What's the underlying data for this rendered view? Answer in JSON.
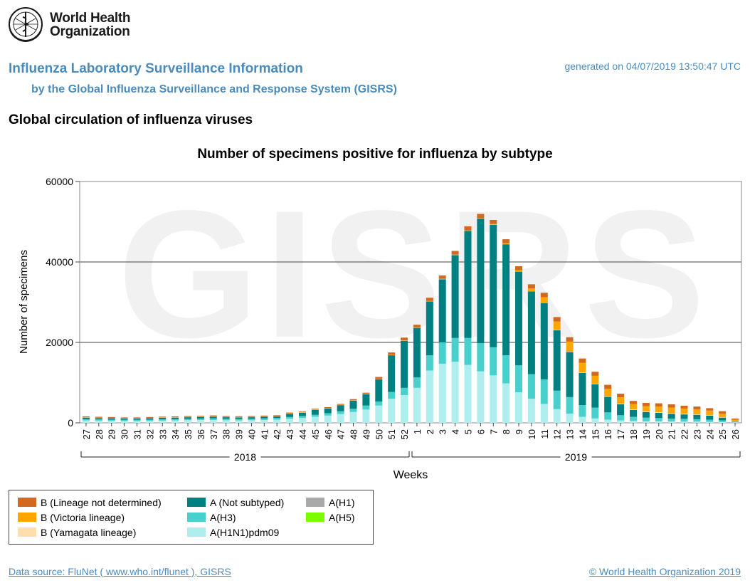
{
  "logo": {
    "line1": "World Health",
    "line2": "Organization"
  },
  "header": {
    "title": "Influenza Laboratory Surveillance Information",
    "subtitle": "by the Global Influenza Surveillance and Response System (GISRS)",
    "generated": "generated on 04/07/2019 13:50:47 UTC"
  },
  "section_title": "Global circulation of influenza viruses",
  "watermark": "GISRS",
  "colors": {
    "b_not_determined": "#d2691e",
    "b_victoria": "#ffa500",
    "b_yamagata": "#ffdead",
    "a_not_subtyped": "#008080",
    "a_h3": "#48d1cc",
    "a_h1n1pdm09": "#afeeee",
    "a_h1": "#a9a9a9",
    "a_h5": "#7cfc00"
  },
  "legend": {
    "items": [
      {
        "key": "b_not_determined",
        "label": "B (Lineage not determined)"
      },
      {
        "key": "b_victoria",
        "label": "B (Victoria lineage)"
      },
      {
        "key": "b_yamagata",
        "label": "B (Yamagata lineage)"
      },
      {
        "key": "a_not_subtyped",
        "label": "A (Not subtyped)"
      },
      {
        "key": "a_h3",
        "label": "A(H3)"
      },
      {
        "key": "a_h1n1pdm09",
        "label": "A(H1N1)pdm09"
      },
      {
        "key": "a_h1",
        "label": "A(H1)"
      },
      {
        "key": "a_h5",
        "label": "A(H5)"
      }
    ]
  },
  "footer": {
    "data_source": "Data source: FluNet ( www.who.int/flunet ), GISRS",
    "copyright": "© World Health Organization 2019"
  },
  "chart_data": {
    "type": "bar",
    "stacked": true,
    "title": "Number of specimens positive for influenza by subtype",
    "xlabel": "Weeks",
    "ylabel": "Number of specimens",
    "ylim": [
      0,
      60000
    ],
    "yticks": [
      0,
      20000,
      40000,
      60000
    ],
    "grid": true,
    "categories": [
      "27",
      "28",
      "29",
      "30",
      "31",
      "32",
      "33",
      "34",
      "35",
      "36",
      "37",
      "38",
      "39",
      "40",
      "41",
      "42",
      "43",
      "44",
      "45",
      "46",
      "47",
      "48",
      "49",
      "50",
      "51",
      "52",
      "1",
      "2",
      "3",
      "4",
      "5",
      "6",
      "7",
      "8",
      "9",
      "10",
      "11",
      "12",
      "13",
      "14",
      "15",
      "16",
      "17",
      "18",
      "19",
      "20",
      "21",
      "22",
      "23",
      "24",
      "25",
      "26"
    ],
    "year_groups": [
      {
        "label": "2018",
        "from": "27",
        "to": "52"
      },
      {
        "label": "2019",
        "from": "1",
        "to": "26"
      }
    ],
    "series": [
      {
        "key": "a_h1n1pdm09",
        "name": "A(H1N1)pdm09",
        "values": [
          600,
          550,
          500,
          450,
          450,
          500,
          550,
          600,
          650,
          700,
          700,
          650,
          600,
          650,
          700,
          800,
          1000,
          1200,
          1500,
          1800,
          2200,
          2700,
          3300,
          4300,
          6000,
          6900,
          8700,
          13000,
          14700,
          15200,
          14400,
          12800,
          11800,
          9800,
          7600,
          6000,
          4700,
          3400,
          2300,
          1500,
          1100,
          800,
          600,
          500,
          400,
          400,
          350,
          300,
          300,
          250,
          200,
          100
        ]
      },
      {
        "key": "a_h3",
        "name": "A(H3)",
        "values": [
          300,
          300,
          300,
          300,
          300,
          300,
          300,
          300,
          350,
          350,
          400,
          350,
          350,
          350,
          400,
          400,
          450,
          500,
          500,
          600,
          700,
          800,
          1000,
          1000,
          1700,
          1800,
          2600,
          3800,
          5300,
          5900,
          6700,
          7000,
          7000,
          7000,
          6700,
          6100,
          6100,
          4600,
          4100,
          2900,
          2700,
          1800,
          1300,
          1000,
          900,
          800,
          700,
          700,
          600,
          550,
          400,
          100
        ]
      },
      {
        "key": "a_not_subtyped",
        "name": "A (Not subtyped)",
        "values": [
          400,
          350,
          350,
          300,
          300,
          350,
          400,
          400,
          400,
          400,
          450,
          400,
          400,
          400,
          400,
          400,
          800,
          800,
          1200,
          1200,
          1500,
          2000,
          2800,
          5500,
          9100,
          11700,
          12300,
          13400,
          15700,
          20600,
          26600,
          31000,
          30400,
          27600,
          23300,
          20600,
          19000,
          15000,
          11200,
          8000,
          5800,
          3900,
          2700,
          1700,
          1400,
          1300,
          1200,
          1100,
          1100,
          1000,
          700,
          100
        ]
      },
      {
        "key": "a_h1",
        "name": "A(H1)",
        "values": [
          0,
          0,
          0,
          0,
          0,
          0,
          0,
          0,
          0,
          0,
          0,
          0,
          0,
          0,
          0,
          0,
          0,
          0,
          0,
          0,
          0,
          0,
          0,
          0,
          0,
          0,
          0,
          0,
          0,
          0,
          0,
          0,
          0,
          0,
          0,
          0,
          0,
          0,
          0,
          0,
          0,
          0,
          0,
          0,
          0,
          0,
          0,
          0,
          0,
          0,
          0,
          0
        ]
      },
      {
        "key": "a_h5",
        "name": "A(H5)",
        "values": [
          0,
          0,
          0,
          0,
          0,
          0,
          0,
          0,
          0,
          0,
          0,
          0,
          0,
          0,
          0,
          0,
          0,
          0,
          0,
          0,
          0,
          0,
          0,
          0,
          0,
          0,
          0,
          0,
          0,
          0,
          0,
          0,
          0,
          0,
          0,
          0,
          0,
          0,
          0,
          0,
          0,
          0,
          0,
          0,
          0,
          0,
          0,
          0,
          0,
          0,
          0,
          0
        ]
      },
      {
        "key": "b_yamagata",
        "name": "B (Yamagata lineage)",
        "values": [
          50,
          50,
          50,
          50,
          50,
          50,
          50,
          50,
          50,
          50,
          50,
          50,
          50,
          50,
          50,
          50,
          50,
          50,
          50,
          50,
          50,
          50,
          50,
          50,
          50,
          50,
          50,
          50,
          50,
          50,
          50,
          50,
          50,
          50,
          50,
          50,
          50,
          100,
          100,
          100,
          100,
          150,
          150,
          150,
          150,
          150,
          150,
          150,
          150,
          150,
          100,
          50
        ]
      },
      {
        "key": "b_victoria",
        "name": "B (Victoria lineage)",
        "values": [
          50,
          50,
          50,
          50,
          50,
          50,
          50,
          50,
          50,
          50,
          50,
          50,
          50,
          50,
          50,
          50,
          50,
          50,
          50,
          50,
          50,
          50,
          50,
          50,
          50,
          50,
          50,
          50,
          100,
          100,
          100,
          100,
          200,
          200,
          300,
          700,
          1400,
          2100,
          2500,
          2400,
          2000,
          1800,
          1600,
          1300,
          1300,
          1400,
          1400,
          1300,
          1200,
          1100,
          900,
          400
        ]
      },
      {
        "key": "b_not_determined",
        "name": "B (Lineage not determined)",
        "values": [
          200,
          200,
          200,
          200,
          200,
          200,
          200,
          200,
          200,
          200,
          200,
          200,
          200,
          200,
          200,
          200,
          200,
          200,
          200,
          200,
          200,
          300,
          300,
          500,
          600,
          700,
          700,
          800,
          800,
          900,
          1000,
          1000,
          1000,
          1000,
          1000,
          1000,
          1100,
          1100,
          1100,
          1100,
          1000,
          1000,
          900,
          800,
          800,
          800,
          800,
          700,
          700,
          600,
          600,
          300
        ]
      }
    ]
  }
}
